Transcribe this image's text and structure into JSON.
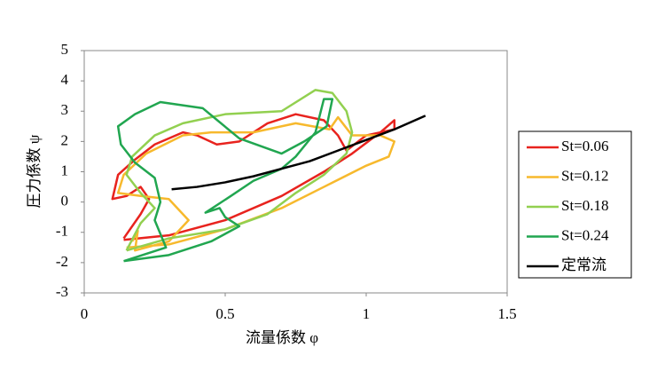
{
  "chart_data": {
    "type": "line",
    "xlabel": "流量係数 φ",
    "ylabel": "圧力係数 ψ",
    "xlim": [
      0,
      1.5
    ],
    "xticks": [
      0,
      0.5,
      1,
      1.5
    ],
    "ylim": [
      -3,
      5
    ],
    "yticks": [
      -3,
      -2,
      -1,
      0,
      1,
      2,
      3,
      4,
      5
    ],
    "grid": false,
    "legend": "right",
    "series": [
      {
        "name": "St=0.06",
        "color": "#e8231e",
        "x": [
          0.14,
          0.3,
          0.5,
          0.7,
          0.85,
          0.95,
          1.05,
          1.1,
          1.1,
          1.0,
          0.93,
          0.9,
          0.85,
          0.75,
          0.65,
          0.55,
          0.47,
          0.4,
          0.35,
          0.25,
          0.18,
          0.12,
          0.1,
          0.15,
          0.2,
          0.23,
          0.2,
          0.14
        ],
        "values": [
          -1.25,
          -1.1,
          -0.6,
          0.2,
          1.0,
          1.6,
          2.3,
          2.7,
          2.4,
          2.2,
          1.7,
          2.2,
          2.7,
          2.9,
          2.6,
          2.0,
          1.9,
          2.2,
          2.3,
          1.9,
          1.4,
          0.9,
          0.1,
          0.2,
          0.5,
          0.1,
          -0.4,
          -1.2
        ]
      },
      {
        "name": "St=0.12",
        "color": "#f7b92d",
        "x": [
          0.15,
          0.3,
          0.5,
          0.7,
          0.85,
          1.0,
          1.08,
          1.1,
          1.05,
          0.95,
          0.9,
          0.87,
          0.75,
          0.6,
          0.45,
          0.35,
          0.22,
          0.14,
          0.12,
          0.2,
          0.3,
          0.37,
          0.3,
          0.18,
          0.19,
          0.17
        ],
        "values": [
          -1.5,
          -1.4,
          -0.9,
          -0.2,
          0.5,
          1.2,
          1.5,
          2.0,
          2.2,
          2.2,
          2.8,
          2.4,
          2.6,
          2.3,
          2.3,
          2.2,
          1.6,
          0.9,
          0.3,
          0.2,
          0.1,
          -0.6,
          -1.3,
          -1.6,
          -0.95,
          -1.3
        ]
      },
      {
        "name": "St=0.18",
        "color": "#92d050",
        "x": [
          0.15,
          0.3,
          0.5,
          0.65,
          0.75,
          0.85,
          0.93,
          0.95,
          0.93,
          0.88,
          0.82,
          0.7,
          0.5,
          0.35,
          0.25,
          0.17,
          0.15,
          0.2,
          0.25,
          0.2,
          0.15
        ],
        "values": [
          -1.6,
          -1.2,
          -0.9,
          -0.4,
          0.3,
          0.9,
          1.6,
          2.3,
          3.0,
          3.6,
          3.7,
          3.0,
          2.9,
          2.6,
          2.2,
          1.5,
          0.9,
          0.3,
          -0.2,
          -0.7,
          -1.6
        ]
      },
      {
        "name": "St=0.24",
        "color": "#21a650",
        "x": [
          0.14,
          0.3,
          0.45,
          0.55,
          0.5,
          0.48,
          0.43,
          0.52,
          0.6,
          0.7,
          0.75,
          0.82,
          0.85,
          0.88,
          0.86,
          0.78,
          0.7,
          0.55,
          0.42,
          0.27,
          0.18,
          0.12,
          0.13,
          0.18,
          0.25,
          0.27,
          0.25,
          0.29,
          0.14
        ],
        "values": [
          -1.95,
          -1.75,
          -1.3,
          -0.8,
          -0.5,
          -0.2,
          -0.35,
          0.2,
          0.7,
          1.1,
          1.5,
          2.3,
          3.4,
          3.4,
          2.5,
          2.0,
          1.6,
          2.1,
          3.1,
          3.3,
          2.9,
          2.5,
          1.9,
          1.3,
          0.8,
          0.0,
          -0.6,
          -1.5,
          -1.95
        ]
      },
      {
        "name": "定常流",
        "color": "#000000",
        "x": [
          0.31,
          0.4,
          0.5,
          0.6,
          0.7,
          0.8,
          0.9,
          1.0,
          1.1,
          1.21
        ],
        "values": [
          0.42,
          0.5,
          0.65,
          0.85,
          1.1,
          1.35,
          1.7,
          2.05,
          2.4,
          2.85
        ]
      }
    ]
  }
}
